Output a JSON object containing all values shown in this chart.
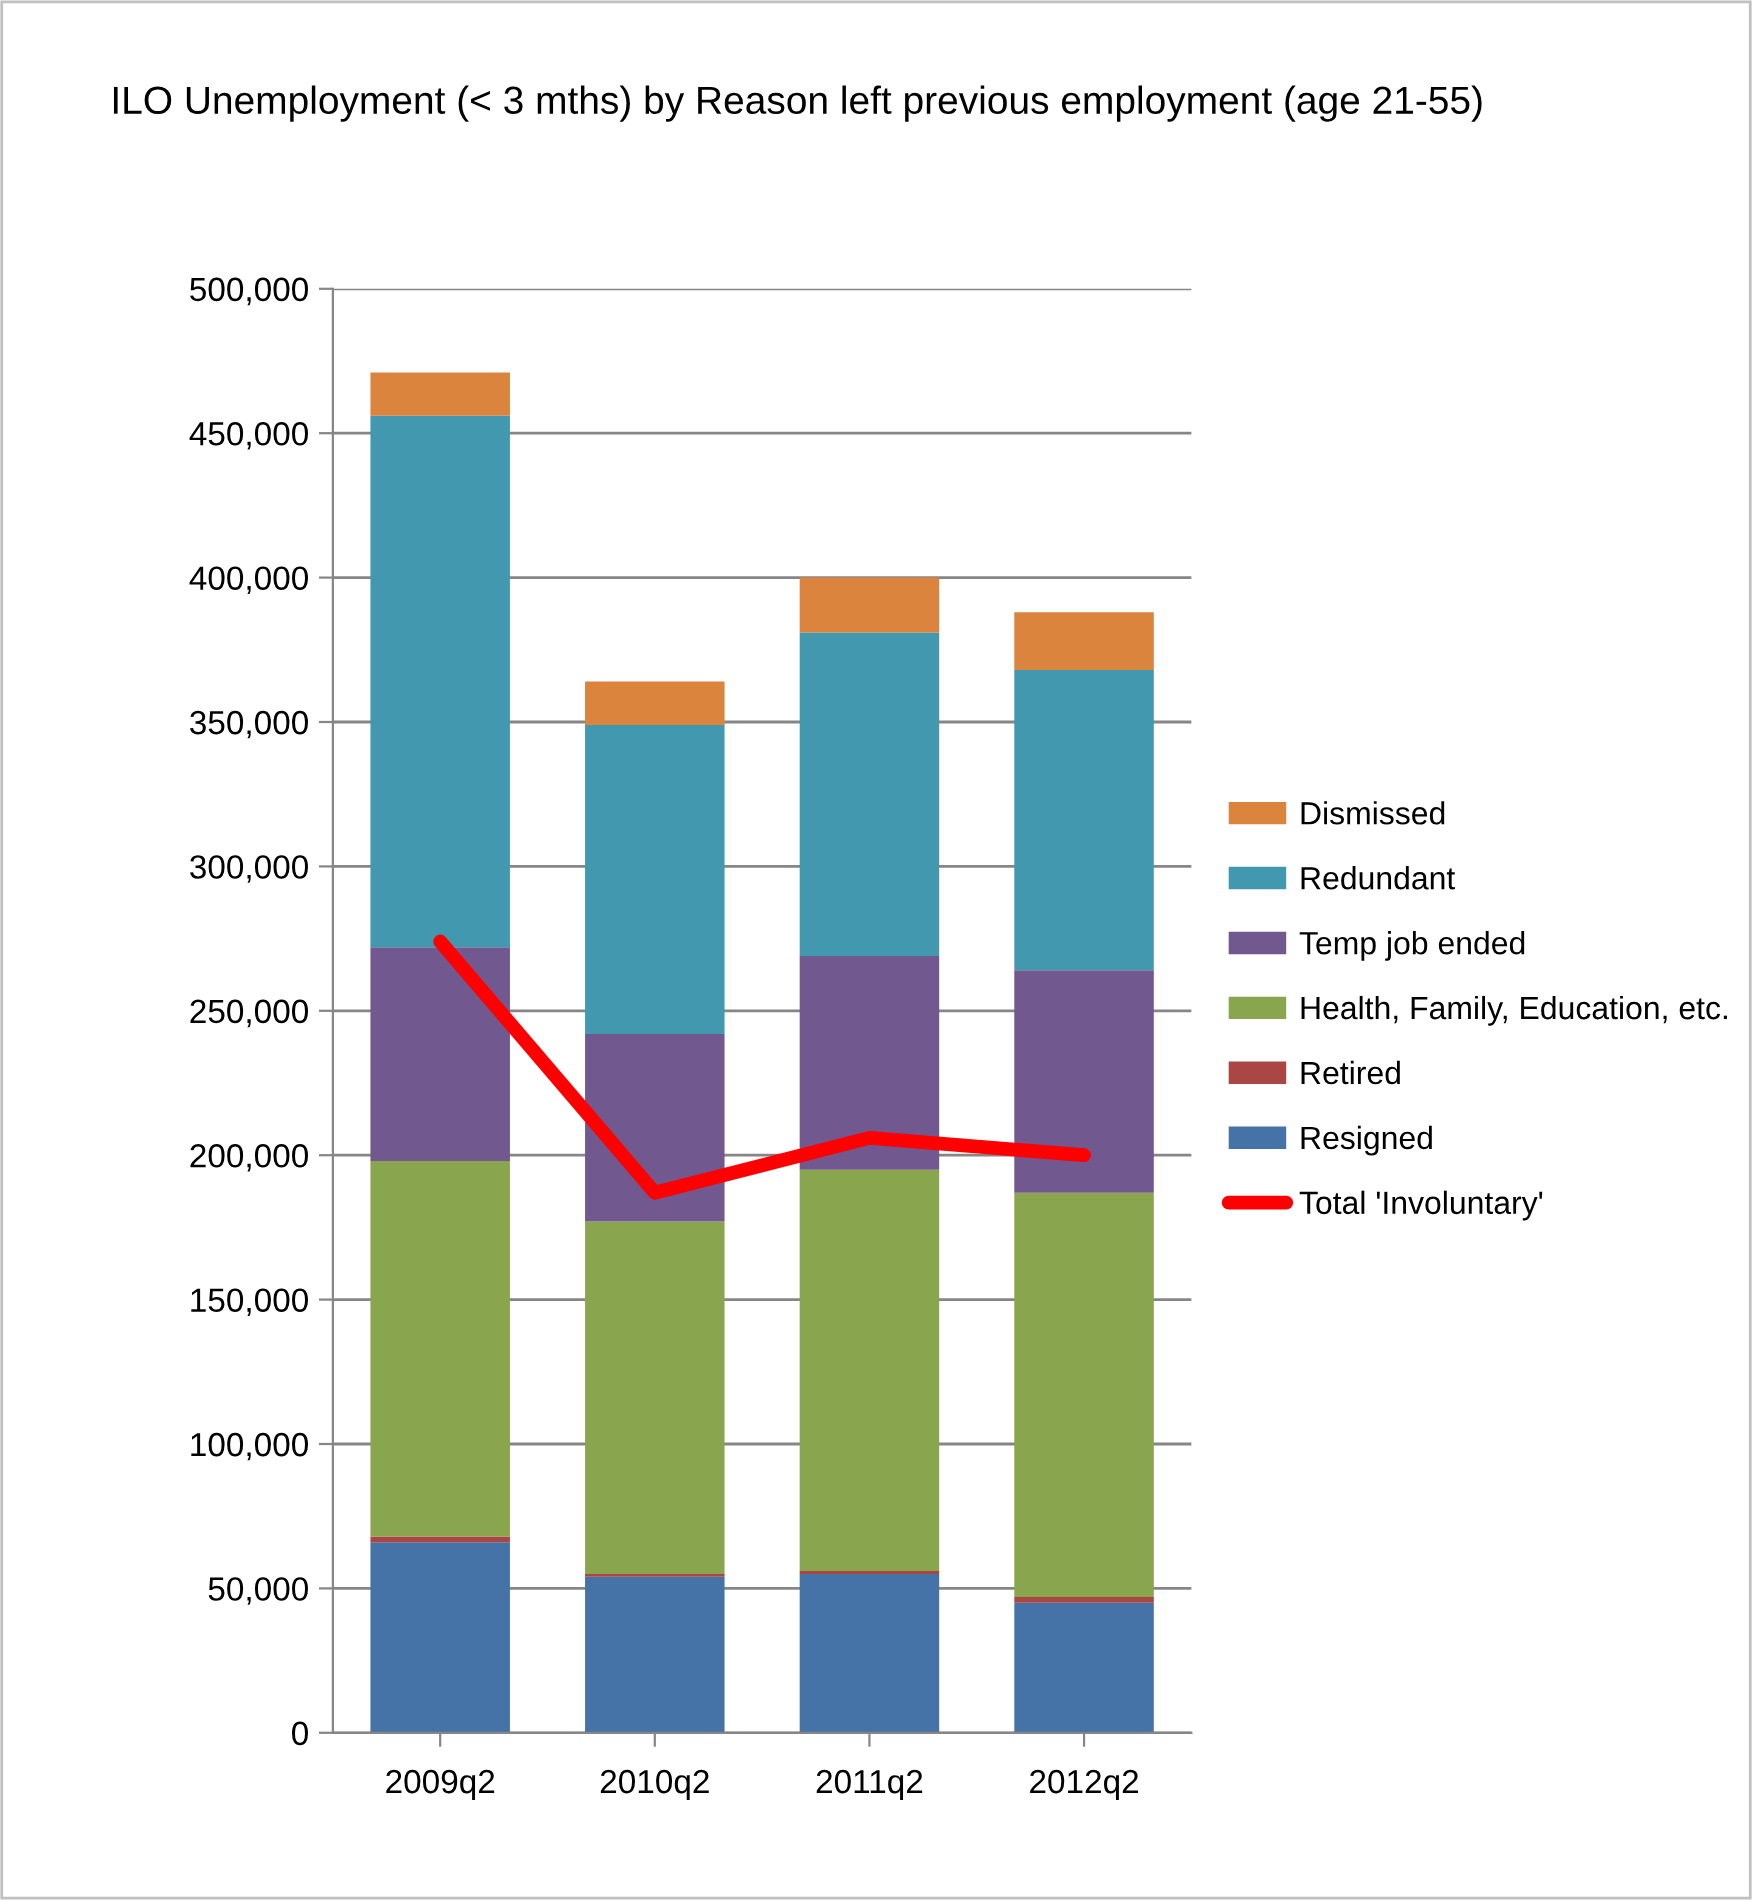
{
  "chart_data": {
    "type": "bar",
    "stacked": true,
    "title": "ILO Unemployment (< 3 mths) by Reason left previous employment (age 21-55)",
    "categories": [
      "2009q2",
      "2010q2",
      "2011q2",
      "2012q2"
    ],
    "series": [
      {
        "name": "Resigned",
        "color": "#4572a7",
        "values": [
          66000,
          54000,
          55000,
          45000
        ]
      },
      {
        "name": "Retired",
        "color": "#aa4643",
        "values": [
          2000,
          1000,
          1000,
          2000
        ]
      },
      {
        "name": "Health, Family, Education, etc.",
        "color": "#89a54e",
        "values": [
          130000,
          122000,
          139000,
          140000
        ]
      },
      {
        "name": "Temp job ended",
        "color": "#71588f",
        "values": [
          74000,
          65000,
          74000,
          77000
        ]
      },
      {
        "name": "Redundant",
        "color": "#4198af",
        "values": [
          184000,
          107000,
          112000,
          104000
        ]
      },
      {
        "name": "Dismissed",
        "color": "#db843d",
        "values": [
          15000,
          15000,
          19000,
          20000
        ]
      },
      {
        "name": "Total 'Involuntary'",
        "type": "line",
        "color": "#ff0000",
        "values": [
          274000,
          187000,
          206000,
          200000
        ]
      }
    ],
    "ylim": [
      0,
      500000
    ],
    "yticks": [
      0,
      {
        "value": 50000,
        "label": "50,000"
      },
      {
        "value": 100000,
        "label": "100,000"
      },
      {
        "value": 150000,
        "label": "150,000"
      },
      {
        "value": 200000,
        "label": "200,000"
      },
      {
        "value": 250000,
        "label": "250,000"
      },
      {
        "value": 300000,
        "label": "300,000"
      },
      {
        "value": 350000,
        "label": "350,000"
      },
      {
        "value": 400000,
        "label": "400,000"
      },
      {
        "value": 450000,
        "label": "450,000"
      },
      {
        "value": 500000,
        "label": "500,000"
      }
    ],
    "grid": "y",
    "legend": "right",
    "marker": "none",
    "line_style": "solid"
  }
}
